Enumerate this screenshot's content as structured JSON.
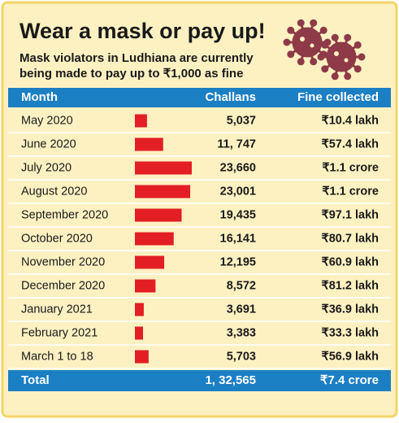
{
  "chart_data": {
    "type": "bar",
    "title": "Wear a mask or pay up!",
    "subtitle": "Mask violators in Ludhiana are currently being made to pay up to ₹1,000 as fine",
    "headers": [
      "Month",
      "Challans",
      "Fine collected"
    ],
    "categories": [
      "May 2020",
      "June 2020",
      "July 2020",
      "August 2020",
      "September 2020",
      "October 2020",
      "November 2020",
      "December 2020",
      "January 2021",
      "February 2021",
      "March 1 to 18"
    ],
    "values": [
      5037,
      11747,
      23660,
      23001,
      19435,
      16141,
      12195,
      8572,
      3691,
      3383,
      5703
    ],
    "value_labels": [
      "5,037",
      "11, 747",
      "23,660",
      "23,001",
      "19,435",
      "16,141",
      "12,195",
      "8,572",
      "3,691",
      "3,383",
      "5,703"
    ],
    "fines": [
      "₹10.4 lakh",
      "₹57.4 lakh",
      "₹1.1 crore",
      "₹1.1 crore",
      "₹97.1 lakh",
      "₹80.7 lakh",
      "₹60.9 lakh",
      "₹81.2 lakh",
      "₹36.9 lakh",
      "₹33.3 lakh",
      "₹56.9 lakh"
    ],
    "total": {
      "label": "Total",
      "challans": "1, 32,565",
      "fine": "₹7.4 crore"
    },
    "color": "#e31e24"
  }
}
